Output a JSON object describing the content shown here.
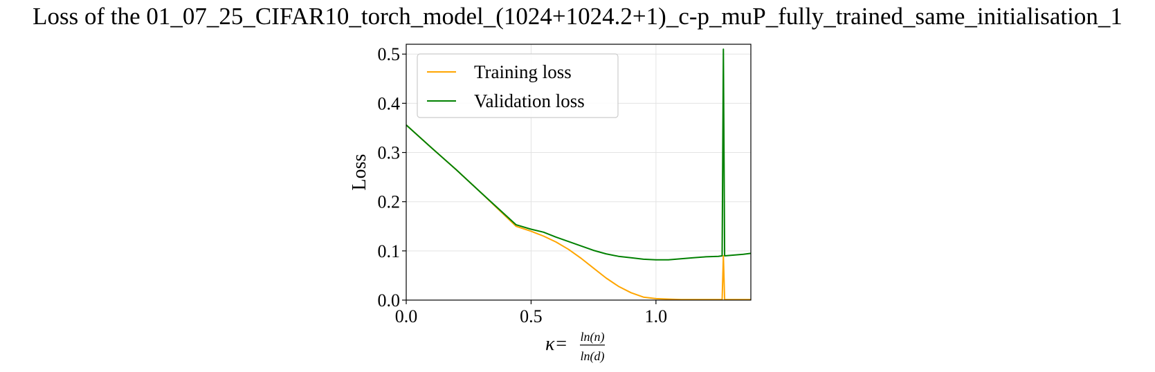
{
  "chart_data": {
    "type": "line",
    "title": "Loss of the 01_07_25_CIFAR10_torch_model_(1024+1024.2+1)_c-p_muP_fully_trained_same_initialisation_1",
    "xlabel": {
      "prefix": "κ=",
      "numerator": "ln(n)",
      "denominator": "ln(d)"
    },
    "ylabel": "Loss",
    "xlim": [
      0.0,
      1.38
    ],
    "ylim": [
      0.0,
      0.52
    ],
    "xticks": [
      0.0,
      0.5,
      1.0
    ],
    "xtick_labels": [
      "0.0",
      "0.5",
      "1.0"
    ],
    "yticks": [
      0.0,
      0.1,
      0.2,
      0.3,
      0.4,
      0.5
    ],
    "ytick_labels": [
      "0.0",
      "0.1",
      "0.2",
      "0.3",
      "0.4",
      "0.5"
    ],
    "grid": true,
    "legend_position": "top-left",
    "series": [
      {
        "name": "Training loss",
        "color": "#ffa500",
        "points": [
          [
            0.0,
            0.356
          ],
          [
            0.1,
            0.31
          ],
          [
            0.2,
            0.265
          ],
          [
            0.3,
            0.218
          ],
          [
            0.44,
            0.15
          ],
          [
            0.5,
            0.14
          ],
          [
            0.55,
            0.13
          ],
          [
            0.6,
            0.118
          ],
          [
            0.65,
            0.103
          ],
          [
            0.7,
            0.085
          ],
          [
            0.75,
            0.065
          ],
          [
            0.8,
            0.045
          ],
          [
            0.85,
            0.028
          ],
          [
            0.9,
            0.015
          ],
          [
            0.95,
            0.006
          ],
          [
            1.0,
            0.003
          ],
          [
            1.05,
            0.002
          ],
          [
            1.1,
            0.001
          ],
          [
            1.2,
            0.001
          ],
          [
            1.265,
            0.001
          ],
          [
            1.27,
            0.09
          ],
          [
            1.275,
            0.001
          ],
          [
            1.3,
            0.001
          ],
          [
            1.38,
            0.001
          ]
        ]
      },
      {
        "name": "Validation loss",
        "color": "#008000",
        "points": [
          [
            0.0,
            0.356
          ],
          [
            0.1,
            0.31
          ],
          [
            0.2,
            0.265
          ],
          [
            0.3,
            0.218
          ],
          [
            0.44,
            0.153
          ],
          [
            0.5,
            0.144
          ],
          [
            0.55,
            0.138
          ],
          [
            0.6,
            0.128
          ],
          [
            0.65,
            0.119
          ],
          [
            0.7,
            0.11
          ],
          [
            0.75,
            0.101
          ],
          [
            0.8,
            0.094
          ],
          [
            0.85,
            0.089
          ],
          [
            0.9,
            0.086
          ],
          [
            0.95,
            0.083
          ],
          [
            1.0,
            0.082
          ],
          [
            1.05,
            0.082
          ],
          [
            1.1,
            0.084
          ],
          [
            1.15,
            0.086
          ],
          [
            1.2,
            0.088
          ],
          [
            1.25,
            0.089
          ],
          [
            1.265,
            0.09
          ],
          [
            1.27,
            0.51
          ],
          [
            1.275,
            0.09
          ],
          [
            1.3,
            0.091
          ],
          [
            1.35,
            0.093
          ],
          [
            1.38,
            0.095
          ]
        ]
      }
    ]
  }
}
